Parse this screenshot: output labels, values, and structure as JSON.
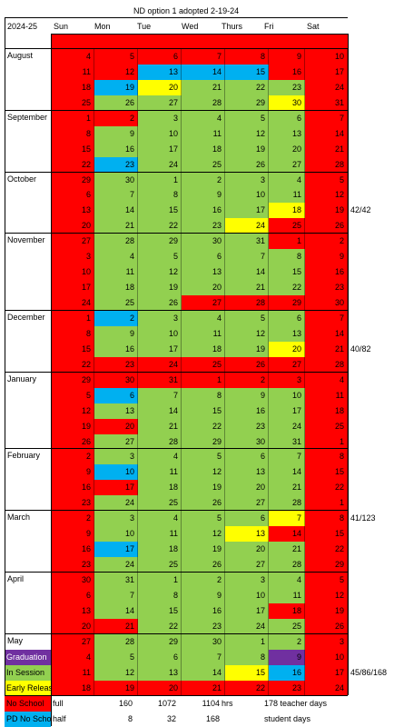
{
  "title": "ND option 1 adopted 2-19-24",
  "year": "2024-25",
  "day_headers": [
    "Sun",
    "Mon",
    "Tue",
    "Wed",
    "Thurs",
    "Fri",
    "Sat"
  ],
  "colors": {
    "no_school": "#ff0000",
    "in_session": "#92d050",
    "pd": "#00b0f0",
    "early": "#ffff00",
    "grad": "#7030a0",
    "white": "#ffffff"
  },
  "months": [
    {
      "name": "August",
      "weeks": [
        {
          "days": [
            "4",
            "5",
            "6",
            "7",
            "8",
            "9",
            "10"
          ],
          "types": [
            "n",
            "n",
            "n",
            "n",
            "n",
            "n",
            "n"
          ]
        },
        {
          "days": [
            "11",
            "12",
            "13",
            "14",
            "15",
            "16",
            "17"
          ],
          "types": [
            "n",
            "n",
            "p",
            "p",
            "p",
            "n",
            "n"
          ]
        },
        {
          "days": [
            "18",
            "19",
            "20",
            "21",
            "22",
            "23",
            "24"
          ],
          "types": [
            "n",
            "p",
            "e",
            "s",
            "s",
            "s",
            "n"
          ]
        },
        {
          "days": [
            "25",
            "26",
            "27",
            "28",
            "29",
            "30",
            "31"
          ],
          "types": [
            "n",
            "s",
            "s",
            "s",
            "s",
            "e",
            "n"
          ]
        }
      ]
    },
    {
      "name": "September",
      "weeks": [
        {
          "days": [
            "1",
            "2",
            "3",
            "4",
            "5",
            "6",
            "7"
          ],
          "types": [
            "n",
            "n",
            "s",
            "s",
            "s",
            "s",
            "n"
          ]
        },
        {
          "days": [
            "8",
            "9",
            "10",
            "11",
            "12",
            "13",
            "14"
          ],
          "types": [
            "n",
            "s",
            "s",
            "s",
            "s",
            "s",
            "n"
          ]
        },
        {
          "days": [
            "15",
            "16",
            "17",
            "18",
            "19",
            "20",
            "21"
          ],
          "types": [
            "n",
            "s",
            "s",
            "s",
            "s",
            "s",
            "n"
          ]
        },
        {
          "days": [
            "22",
            "23",
            "24",
            "25",
            "26",
            "27",
            "28"
          ],
          "types": [
            "n",
            "p",
            "s",
            "s",
            "s",
            "s",
            "n"
          ]
        }
      ]
    },
    {
      "name": "October",
      "note": "42/42",
      "note_row": 2,
      "weeks": [
        {
          "days": [
            "29",
            "30",
            "1",
            "2",
            "3",
            "4",
            "5"
          ],
          "types": [
            "n",
            "s",
            "s",
            "s",
            "s",
            "s",
            "n"
          ]
        },
        {
          "days": [
            "6",
            "7",
            "8",
            "9",
            "10",
            "11",
            "12"
          ],
          "types": [
            "n",
            "s",
            "s",
            "s",
            "s",
            "s",
            "n"
          ]
        },
        {
          "days": [
            "13",
            "14",
            "15",
            "16",
            "17",
            "18",
            "19"
          ],
          "types": [
            "n",
            "s",
            "s",
            "s",
            "s",
            "e",
            "n"
          ]
        },
        {
          "days": [
            "20",
            "21",
            "22",
            "23",
            "24",
            "25",
            "26"
          ],
          "types": [
            "n",
            "s",
            "s",
            "s",
            "e",
            "n",
            "n"
          ]
        }
      ]
    },
    {
      "name": "November",
      "weeks": [
        {
          "days": [
            "27",
            "28",
            "29",
            "30",
            "31",
            "1",
            "2"
          ],
          "types": [
            "n",
            "s",
            "s",
            "s",
            "s",
            "n",
            "n"
          ]
        },
        {
          "days": [
            "3",
            "4",
            "5",
            "6",
            "7",
            "8",
            "9"
          ],
          "types": [
            "n",
            "s",
            "s",
            "s",
            "s",
            "s",
            "n"
          ]
        },
        {
          "days": [
            "10",
            "11",
            "12",
            "13",
            "14",
            "15",
            "16"
          ],
          "types": [
            "n",
            "s",
            "s",
            "s",
            "s",
            "s",
            "n"
          ]
        },
        {
          "days": [
            "17",
            "18",
            "19",
            "20",
            "21",
            "22",
            "23"
          ],
          "types": [
            "n",
            "s",
            "s",
            "s",
            "s",
            "s",
            "n"
          ]
        },
        {
          "days": [
            "24",
            "25",
            "26",
            "27",
            "28",
            "29",
            "30"
          ],
          "types": [
            "n",
            "s",
            "s",
            "n",
            "n",
            "n",
            "n"
          ]
        }
      ]
    },
    {
      "name": "December",
      "note": "40/82",
      "note_row": 2,
      "weeks": [
        {
          "days": [
            "1",
            "2",
            "3",
            "4",
            "5",
            "6",
            "7"
          ],
          "types": [
            "n",
            "p",
            "s",
            "s",
            "s",
            "s",
            "n"
          ]
        },
        {
          "days": [
            "8",
            "9",
            "10",
            "11",
            "12",
            "13",
            "14"
          ],
          "types": [
            "n",
            "s",
            "s",
            "s",
            "s",
            "s",
            "n"
          ]
        },
        {
          "days": [
            "15",
            "16",
            "17",
            "18",
            "19",
            "20",
            "21"
          ],
          "types": [
            "n",
            "s",
            "s",
            "s",
            "s",
            "e",
            "n"
          ]
        },
        {
          "days": [
            "22",
            "23",
            "24",
            "25",
            "26",
            "27",
            "28"
          ],
          "types": [
            "n",
            "n",
            "n",
            "n",
            "n",
            "n",
            "n"
          ]
        }
      ]
    },
    {
      "name": "January",
      "weeks": [
        {
          "days": [
            "29",
            "30",
            "31",
            "1",
            "2",
            "3",
            "4"
          ],
          "types": [
            "n",
            "n",
            "n",
            "n",
            "n",
            "n",
            "n"
          ]
        },
        {
          "days": [
            "5",
            "6",
            "7",
            "8",
            "9",
            "10",
            "11"
          ],
          "types": [
            "n",
            "p",
            "s",
            "s",
            "s",
            "s",
            "n"
          ]
        },
        {
          "days": [
            "12",
            "13",
            "14",
            "15",
            "16",
            "17",
            "18"
          ],
          "types": [
            "n",
            "s",
            "s",
            "s",
            "s",
            "s",
            "n"
          ]
        },
        {
          "days": [
            "19",
            "20",
            "21",
            "22",
            "23",
            "24",
            "25"
          ],
          "types": [
            "n",
            "n",
            "s",
            "s",
            "s",
            "s",
            "n"
          ]
        },
        {
          "days": [
            "26",
            "27",
            "28",
            "29",
            "30",
            "31",
            "1"
          ],
          "types": [
            "n",
            "s",
            "s",
            "s",
            "s",
            "s",
            "n"
          ]
        }
      ]
    },
    {
      "name": "February",
      "weeks": [
        {
          "days": [
            "2",
            "3",
            "4",
            "5",
            "6",
            "7",
            "8"
          ],
          "types": [
            "n",
            "s",
            "s",
            "s",
            "s",
            "s",
            "n"
          ]
        },
        {
          "days": [
            "9",
            "10",
            "11",
            "12",
            "13",
            "14",
            "15"
          ],
          "types": [
            "n",
            "p",
            "s",
            "s",
            "s",
            "s",
            "n"
          ]
        },
        {
          "days": [
            "16",
            "17",
            "18",
            "19",
            "20",
            "21",
            "22"
          ],
          "types": [
            "n",
            "n",
            "s",
            "s",
            "s",
            "s",
            "n"
          ]
        },
        {
          "days": [
            "23",
            "24",
            "25",
            "26",
            "27",
            "28",
            "1"
          ],
          "types": [
            "n",
            "s",
            "s",
            "s",
            "s",
            "s",
            "n"
          ]
        }
      ]
    },
    {
      "name": "March",
      "note": "41/123",
      "note_row": 0,
      "weeks": [
        {
          "days": [
            "2",
            "3",
            "4",
            "5",
            "6",
            "7",
            "8"
          ],
          "types": [
            "n",
            "s",
            "s",
            "s",
            "s",
            "e",
            "n"
          ]
        },
        {
          "days": [
            "9",
            "10",
            "11",
            "12",
            "13",
            "14",
            "15"
          ],
          "types": [
            "n",
            "s",
            "s",
            "s",
            "e",
            "n",
            "n"
          ]
        },
        {
          "days": [
            "16",
            "17",
            "18",
            "19",
            "20",
            "21",
            "22"
          ],
          "types": [
            "n",
            "p",
            "s",
            "s",
            "s",
            "s",
            "n"
          ]
        },
        {
          "days": [
            "23",
            "24",
            "25",
            "26",
            "27",
            "28",
            "29"
          ],
          "types": [
            "n",
            "s",
            "s",
            "s",
            "s",
            "s",
            "n"
          ]
        }
      ]
    },
    {
      "name": "April",
      "weeks": [
        {
          "days": [
            "30",
            "31",
            "1",
            "2",
            "3",
            "4",
            "5"
          ],
          "types": [
            "n",
            "s",
            "s",
            "s",
            "s",
            "s",
            "n"
          ]
        },
        {
          "days": [
            "6",
            "7",
            "8",
            "9",
            "10",
            "11",
            "12"
          ],
          "types": [
            "n",
            "s",
            "s",
            "s",
            "s",
            "s",
            "n"
          ]
        },
        {
          "days": [
            "13",
            "14",
            "15",
            "16",
            "17",
            "18",
            "19"
          ],
          "types": [
            "n",
            "s",
            "s",
            "s",
            "s",
            "n",
            "n"
          ]
        },
        {
          "days": [
            "20",
            "21",
            "22",
            "23",
            "24",
            "25",
            "26"
          ],
          "types": [
            "n",
            "n",
            "s",
            "s",
            "s",
            "s",
            "n"
          ]
        }
      ]
    },
    {
      "name": "May",
      "note": "45/86/168",
      "note_row": 2,
      "weeks": [
        {
          "days": [
            "27",
            "28",
            "29",
            "30",
            "1",
            "2",
            "3"
          ],
          "types": [
            "n",
            "s",
            "s",
            "s",
            "s",
            "s",
            "n"
          ]
        },
        {
          "days": [
            "4",
            "5",
            "6",
            "7",
            "8",
            "9",
            "10"
          ],
          "types": [
            "n",
            "s",
            "s",
            "s",
            "s",
            "g",
            "n"
          ]
        },
        {
          "days": [
            "11",
            "12",
            "13",
            "14",
            "15",
            "16",
            "17"
          ],
          "types": [
            "n",
            "s",
            "s",
            "s",
            "e",
            "p",
            "n"
          ]
        },
        {
          "days": [
            "18",
            "19",
            "20",
            "21",
            "22",
            "23",
            "24"
          ],
          "types": [
            "n",
            "n",
            "n",
            "n",
            "n",
            "n",
            "n"
          ]
        }
      ]
    }
  ],
  "legend": [
    {
      "label": "Graduation",
      "color": "#7030a0",
      "row": 1
    },
    {
      "label": "In Session",
      "color": "#92d050",
      "row": 2
    },
    {
      "label": "Early Release",
      "color": "#ffff00",
      "row": 3
    }
  ],
  "footer": [
    {
      "legend": "No School",
      "legend_color": "#ff0000",
      "kind": "full",
      "v1": "160",
      "v2": "1072",
      "v3": "1104",
      "unit": "hrs",
      "summary": "178 teacher days"
    },
    {
      "legend": "PD No School",
      "legend_color": "#00b0f0",
      "kind": "half",
      "v1": "8",
      "v2": "32",
      "v3": "168",
      "unit": "",
      "summary": "student days"
    }
  ]
}
